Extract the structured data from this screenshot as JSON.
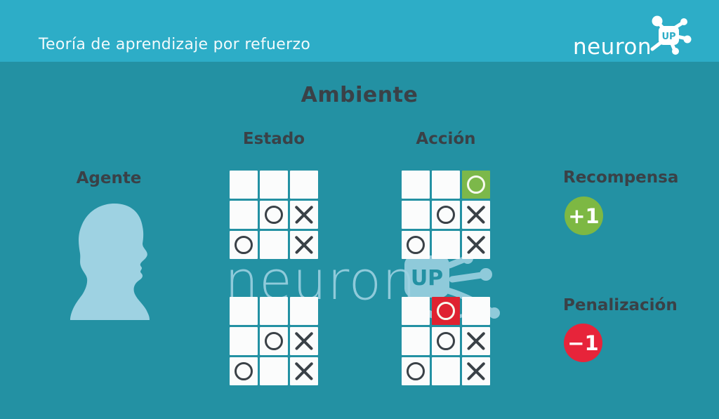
{
  "header": {
    "title": "Teoría de aprendizaje por refuerzo",
    "logo_text": "neuron",
    "logo_up": "UP"
  },
  "main": {
    "title": "Ambiente",
    "columns": {
      "estado": "Estado",
      "accion": "Acción"
    },
    "agent_label": "Agente",
    "reward_label": "Recompensa",
    "reward_value": "+1",
    "penalty_label": "Penalización",
    "penalty_value": "−1"
  },
  "watermark": {
    "text": "neuron",
    "up": "UP"
  },
  "colors": {
    "header_bg": "#2dadc7",
    "body_bg": "#2391a3",
    "cell_bg": "#fbfcfc",
    "mark_dark": "#3a4147",
    "highlight_green": "#7cb84a",
    "highlight_red": "#df2230",
    "badge_green": "#7db843",
    "badge_red": "#e7243a",
    "light_blue": "#9ed2e2",
    "text_dark": "#3a4147",
    "text_light": "#f2fafc"
  },
  "grids": [
    {
      "name": "estado-top",
      "cells": [
        [
          "",
          "",
          ""
        ],
        [
          "",
          "O",
          "X"
        ],
        [
          "O",
          "",
          "X"
        ]
      ],
      "highlights": []
    },
    {
      "name": "accion-top",
      "cells": [
        [
          "",
          "",
          "O"
        ],
        [
          "",
          "O",
          "X"
        ],
        [
          "O",
          "",
          "X"
        ]
      ],
      "highlights": [
        {
          "row": 0,
          "col": 2,
          "color": "green"
        }
      ]
    },
    {
      "name": "estado-bottom",
      "cells": [
        [
          "",
          "",
          ""
        ],
        [
          "",
          "O",
          "X"
        ],
        [
          "O",
          "",
          "X"
        ]
      ],
      "highlights": []
    },
    {
      "name": "accion-bottom",
      "cells": [
        [
          "",
          "O",
          ""
        ],
        [
          "",
          "O",
          "X"
        ],
        [
          "O",
          "",
          "X"
        ]
      ],
      "highlights": [
        {
          "row": 0,
          "col": 1,
          "color": "red"
        }
      ]
    }
  ]
}
